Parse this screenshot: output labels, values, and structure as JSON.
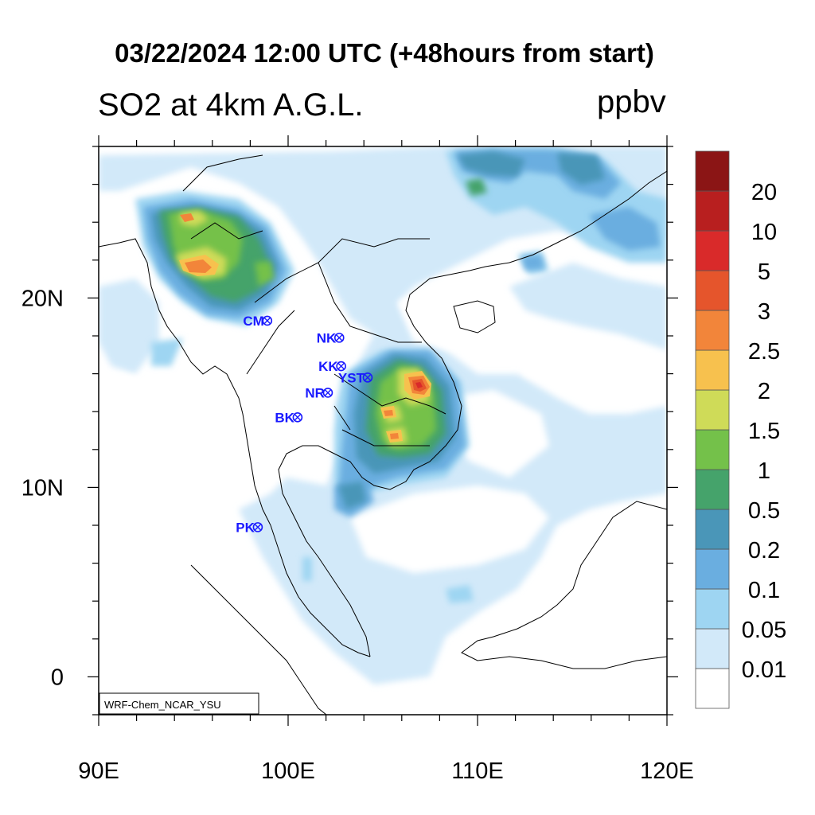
{
  "title": "03/22/2024 12:00 UTC (+48hours from start)",
  "left_string": "SO2 at 4km A.G.L.",
  "units": "ppbv",
  "credit": "WRF-Chem_NCAR_YSU",
  "map": {
    "lon_range": [
      90,
      120
    ],
    "lat_range": [
      -2,
      28
    ],
    "x_ticks": [
      "90E",
      "100E",
      "110E",
      "120E"
    ],
    "y_ticks": [
      "0",
      "10N",
      "20N"
    ]
  },
  "colorbar": {
    "levels": [
      "0.01",
      "0.05",
      "0.1",
      "0.2",
      "0.5",
      "1",
      "1.5",
      "2",
      "2.5",
      "3",
      "5",
      "10",
      "20"
    ],
    "colors": [
      "#ffffff",
      "#d2e9f9",
      "#9ed5f2",
      "#6aaee0",
      "#4a96b8",
      "#45a36b",
      "#74c14a",
      "#cfdb58",
      "#f7c14e",
      "#f2853a",
      "#e5552c",
      "#d92a2a",
      "#b81f1f",
      "#8b1515"
    ]
  },
  "stations": [
    {
      "label": "CM",
      "lon": 98.9,
      "lat": 18.8
    },
    {
      "label": "NK",
      "lon": 102.7,
      "lat": 17.9
    },
    {
      "label": "KK",
      "lon": 102.8,
      "lat": 16.4
    },
    {
      "label": "YST",
      "lon": 104.2,
      "lat": 15.8
    },
    {
      "label": "NR",
      "lon": 102.1,
      "lat": 15.0
    },
    {
      "label": "BK",
      "lon": 100.5,
      "lat": 13.7
    },
    {
      "label": "PK",
      "lon": 98.4,
      "lat": 7.9
    }
  ]
}
